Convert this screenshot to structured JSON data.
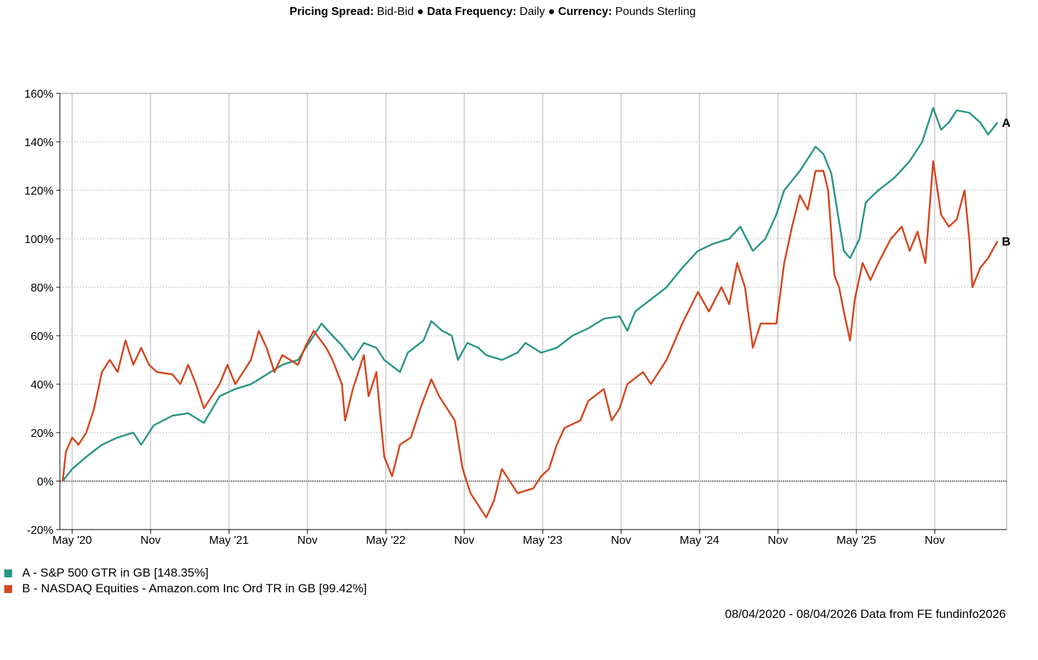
{
  "header": {
    "pricing_label": "Pricing Spread:",
    "pricing_value": "Bid-Bid",
    "sep1": "●",
    "frequency_label": "Data Frequency:",
    "frequency_value": "Daily",
    "sep2": "●",
    "currency_label": "Currency:",
    "currency_value": "Pounds Sterling"
  },
  "legend": [
    {
      "text": "A - S&P 500 GTR in GB [148.35%]",
      "color": "#2a9687"
    },
    {
      "text": "B - NASDAQ Equities - Amazon.com Inc Ord TR in GB [99.42%]",
      "color": "#d4461e"
    }
  ],
  "footer": "08/04/2020 - 08/04/2026 Data from FE fundinfo2026",
  "chart_data": {
    "type": "line",
    "x_unit": "years since 08/04/2020",
    "ylim": [
      -20,
      160
    ],
    "y_ticks": [
      160,
      140,
      120,
      100,
      80,
      60,
      40,
      20,
      0,
      -20
    ],
    "y_tick_labels": [
      "160%",
      "140%",
      "120%",
      "100%",
      "80%",
      "60%",
      "40%",
      "20%",
      "0%",
      "-20%"
    ],
    "x_ticks": [
      {
        "label": "May '20",
        "t": 0.06
      },
      {
        "label": "Nov",
        "t": 0.56
      },
      {
        "label": "May '21",
        "t": 1.06
      },
      {
        "label": "Nov",
        "t": 1.56
      },
      {
        "label": "May '22",
        "t": 2.06
      },
      {
        "label": "Nov",
        "t": 2.56
      },
      {
        "label": "May '23",
        "t": 3.06
      },
      {
        "label": "Nov",
        "t": 3.56
      },
      {
        "label": "May '24",
        "t": 4.06
      },
      {
        "label": "Nov",
        "t": 4.56
      },
      {
        "label": "May '25",
        "t": 5.06
      },
      {
        "label": "Nov",
        "t": 5.56
      }
    ],
    "grid": true,
    "zero_line": true,
    "series": [
      {
        "name": "A",
        "color": "#2a9687",
        "end_label": "A",
        "points": [
          [
            0.0,
            0
          ],
          [
            0.06,
            5
          ],
          [
            0.15,
            10
          ],
          [
            0.25,
            15
          ],
          [
            0.35,
            18
          ],
          [
            0.45,
            20
          ],
          [
            0.5,
            15
          ],
          [
            0.58,
            23
          ],
          [
            0.7,
            27
          ],
          [
            0.8,
            28
          ],
          [
            0.9,
            24
          ],
          [
            1.0,
            35
          ],
          [
            1.1,
            38
          ],
          [
            1.2,
            40
          ],
          [
            1.3,
            44
          ],
          [
            1.4,
            48
          ],
          [
            1.5,
            50
          ],
          [
            1.55,
            55
          ],
          [
            1.62,
            62
          ],
          [
            1.65,
            65
          ],
          [
            1.72,
            60
          ],
          [
            1.78,
            56
          ],
          [
            1.85,
            50
          ],
          [
            1.92,
            57
          ],
          [
            2.0,
            55
          ],
          [
            2.05,
            50
          ],
          [
            2.15,
            45
          ],
          [
            2.2,
            53
          ],
          [
            2.3,
            58
          ],
          [
            2.35,
            66
          ],
          [
            2.42,
            62
          ],
          [
            2.48,
            60
          ],
          [
            2.52,
            50
          ],
          [
            2.58,
            57
          ],
          [
            2.65,
            55
          ],
          [
            2.7,
            52
          ],
          [
            2.8,
            50
          ],
          [
            2.9,
            53
          ],
          [
            2.95,
            57
          ],
          [
            3.05,
            53
          ],
          [
            3.15,
            55
          ],
          [
            3.25,
            60
          ],
          [
            3.35,
            63
          ],
          [
            3.45,
            67
          ],
          [
            3.55,
            68
          ],
          [
            3.6,
            62
          ],
          [
            3.65,
            70
          ],
          [
            3.75,
            75
          ],
          [
            3.85,
            80
          ],
          [
            3.95,
            88
          ],
          [
            4.05,
            95
          ],
          [
            4.15,
            98
          ],
          [
            4.25,
            100
          ],
          [
            4.32,
            105
          ],
          [
            4.4,
            95
          ],
          [
            4.48,
            100
          ],
          [
            4.55,
            110
          ],
          [
            4.6,
            120
          ],
          [
            4.7,
            128
          ],
          [
            4.8,
            138
          ],
          [
            4.85,
            135
          ],
          [
            4.9,
            127
          ],
          [
            4.93,
            115
          ],
          [
            4.98,
            95
          ],
          [
            5.02,
            92
          ],
          [
            5.08,
            100
          ],
          [
            5.12,
            115
          ],
          [
            5.2,
            120
          ],
          [
            5.3,
            125
          ],
          [
            5.4,
            132
          ],
          [
            5.48,
            140
          ],
          [
            5.55,
            154
          ],
          [
            5.6,
            145
          ],
          [
            5.65,
            148
          ],
          [
            5.7,
            153
          ],
          [
            5.78,
            152
          ],
          [
            5.85,
            148
          ],
          [
            5.9,
            143
          ],
          [
            5.96,
            148
          ]
        ]
      },
      {
        "name": "B",
        "color": "#d4461e",
        "end_label": "B",
        "points": [
          [
            0.0,
            0
          ],
          [
            0.02,
            12
          ],
          [
            0.06,
            18
          ],
          [
            0.1,
            15
          ],
          [
            0.15,
            20
          ],
          [
            0.2,
            30
          ],
          [
            0.25,
            45
          ],
          [
            0.3,
            50
          ],
          [
            0.35,
            45
          ],
          [
            0.4,
            58
          ],
          [
            0.45,
            48
          ],
          [
            0.5,
            55
          ],
          [
            0.55,
            48
          ],
          [
            0.6,
            45
          ],
          [
            0.7,
            44
          ],
          [
            0.75,
            40
          ],
          [
            0.8,
            48
          ],
          [
            0.85,
            40
          ],
          [
            0.9,
            30
          ],
          [
            0.95,
            35
          ],
          [
            1.0,
            40
          ],
          [
            1.05,
            48
          ],
          [
            1.1,
            40
          ],
          [
            1.2,
            50
          ],
          [
            1.25,
            62
          ],
          [
            1.3,
            55
          ],
          [
            1.35,
            45
          ],
          [
            1.4,
            52
          ],
          [
            1.45,
            50
          ],
          [
            1.5,
            48
          ],
          [
            1.55,
            56
          ],
          [
            1.6,
            62
          ],
          [
            1.68,
            55
          ],
          [
            1.72,
            50
          ],
          [
            1.78,
            40
          ],
          [
            1.8,
            25
          ],
          [
            1.85,
            38
          ],
          [
            1.92,
            52
          ],
          [
            1.95,
            35
          ],
          [
            2.0,
            45
          ],
          [
            2.02,
            30
          ],
          [
            2.05,
            10
          ],
          [
            2.1,
            2
          ],
          [
            2.15,
            15
          ],
          [
            2.22,
            18
          ],
          [
            2.28,
            30
          ],
          [
            2.35,
            42
          ],
          [
            2.4,
            35
          ],
          [
            2.45,
            30
          ],
          [
            2.5,
            25
          ],
          [
            2.55,
            5
          ],
          [
            2.6,
            -5
          ],
          [
            2.65,
            -10
          ],
          [
            2.7,
            -15
          ],
          [
            2.75,
            -8
          ],
          [
            2.8,
            5
          ],
          [
            2.85,
            0
          ],
          [
            2.9,
            -5
          ],
          [
            3.0,
            -3
          ],
          [
            3.05,
            2
          ],
          [
            3.1,
            5
          ],
          [
            3.15,
            15
          ],
          [
            3.2,
            22
          ],
          [
            3.3,
            25
          ],
          [
            3.35,
            33
          ],
          [
            3.45,
            38
          ],
          [
            3.5,
            25
          ],
          [
            3.55,
            30
          ],
          [
            3.6,
            40
          ],
          [
            3.7,
            45
          ],
          [
            3.75,
            40
          ],
          [
            3.85,
            50
          ],
          [
            3.95,
            65
          ],
          [
            4.05,
            78
          ],
          [
            4.12,
            70
          ],
          [
            4.2,
            80
          ],
          [
            4.25,
            73
          ],
          [
            4.3,
            90
          ],
          [
            4.35,
            80
          ],
          [
            4.4,
            55
          ],
          [
            4.45,
            65
          ],
          [
            4.5,
            65
          ],
          [
            4.55,
            65
          ],
          [
            4.6,
            90
          ],
          [
            4.65,
            105
          ],
          [
            4.7,
            118
          ],
          [
            4.75,
            112
          ],
          [
            4.8,
            128
          ],
          [
            4.85,
            128
          ],
          [
            4.88,
            120
          ],
          [
            4.92,
            85
          ],
          [
            4.95,
            80
          ],
          [
            4.98,
            70
          ],
          [
            5.02,
            58
          ],
          [
            5.05,
            75
          ],
          [
            5.1,
            90
          ],
          [
            5.15,
            83
          ],
          [
            5.2,
            90
          ],
          [
            5.28,
            100
          ],
          [
            5.35,
            105
          ],
          [
            5.4,
            95
          ],
          [
            5.45,
            103
          ],
          [
            5.5,
            90
          ],
          [
            5.55,
            132
          ],
          [
            5.6,
            110
          ],
          [
            5.65,
            105
          ],
          [
            5.7,
            108
          ],
          [
            5.75,
            120
          ],
          [
            5.78,
            100
          ],
          [
            5.8,
            80
          ],
          [
            5.85,
            88
          ],
          [
            5.9,
            92
          ],
          [
            5.96,
            99
          ]
        ]
      }
    ]
  }
}
